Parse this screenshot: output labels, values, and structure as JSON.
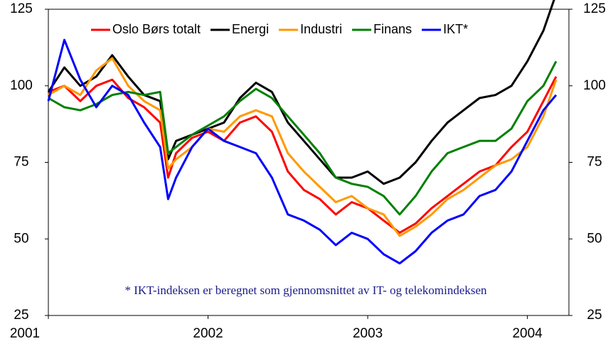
{
  "chart_data": {
    "type": "line",
    "annotation": "* IKT-indeksen er beregnet som gjennomsnittet av IT- og telekomindeksen",
    "x": [
      2001.0,
      2001.1,
      2001.2,
      2001.3,
      2001.4,
      2001.5,
      2001.6,
      2001.7,
      2001.75,
      2001.8,
      2001.9,
      2002.0,
      2002.1,
      2002.2,
      2002.3,
      2002.4,
      2002.5,
      2002.6,
      2002.7,
      2002.8,
      2002.9,
      2003.0,
      2003.1,
      2003.2,
      2003.3,
      2003.4,
      2003.5,
      2003.6,
      2003.7,
      2003.8,
      2003.9,
      2004.0,
      2004.1,
      2004.18
    ],
    "series": [
      {
        "name": "Oslo Børs totalt",
        "color": "#ff0000",
        "values": [
          98,
          100,
          95,
          100,
          102,
          96,
          93,
          88,
          70,
          78,
          83,
          85,
          82,
          88,
          90,
          85,
          72,
          66,
          63,
          58,
          62,
          60,
          56,
          52,
          55,
          60,
          64,
          68,
          72,
          74,
          80,
          85,
          95,
          103
        ]
      },
      {
        "name": "Energi",
        "color": "#000000",
        "values": [
          98,
          106,
          100,
          103,
          110,
          103,
          97,
          95,
          76,
          82,
          84,
          86,
          88,
          96,
          101,
          98,
          88,
          82,
          76,
          70,
          70,
          72,
          68,
          70,
          75,
          82,
          88,
          92,
          96,
          97,
          100,
          108,
          118,
          130
        ]
      },
      {
        "name": "Industri",
        "color": "#ff9900",
        "values": [
          97,
          100,
          97,
          105,
          109,
          100,
          95,
          92,
          73,
          76,
          80,
          86,
          85,
          90,
          92,
          90,
          78,
          72,
          67,
          62,
          64,
          60,
          58,
          51,
          54,
          58,
          63,
          66,
          70,
          74,
          76,
          80,
          90,
          102
        ]
      },
      {
        "name": "Finans",
        "color": "#008000",
        "values": [
          96,
          93,
          92,
          94,
          97,
          98,
          97,
          98,
          78,
          80,
          84,
          87,
          90,
          95,
          99,
          96,
          90,
          84,
          78,
          70,
          68,
          67,
          64,
          58,
          64,
          72,
          78,
          80,
          82,
          82,
          86,
          95,
          100,
          108
        ]
      },
      {
        "name": "IKT*",
        "color": "#0000ff",
        "values": [
          95,
          115,
          102,
          93,
          100,
          97,
          88,
          80,
          63,
          70,
          80,
          86,
          82,
          80,
          78,
          70,
          58,
          56,
          53,
          48,
          52,
          50,
          45,
          42,
          46,
          52,
          56,
          58,
          64,
          66,
          72,
          82,
          92,
          97
        ]
      }
    ],
    "xlim": [
      2001,
      2004.26
    ],
    "xticks": [
      2001,
      2002,
      2003,
      2004
    ],
    "ylim": [
      25,
      125
    ],
    "yticks": [
      25,
      50,
      75,
      100,
      125
    ],
    "y2lim": [
      25,
      125
    ],
    "y2ticks": [
      25,
      50,
      75,
      100,
      125
    ],
    "legend": "top",
    "grid": false
  }
}
